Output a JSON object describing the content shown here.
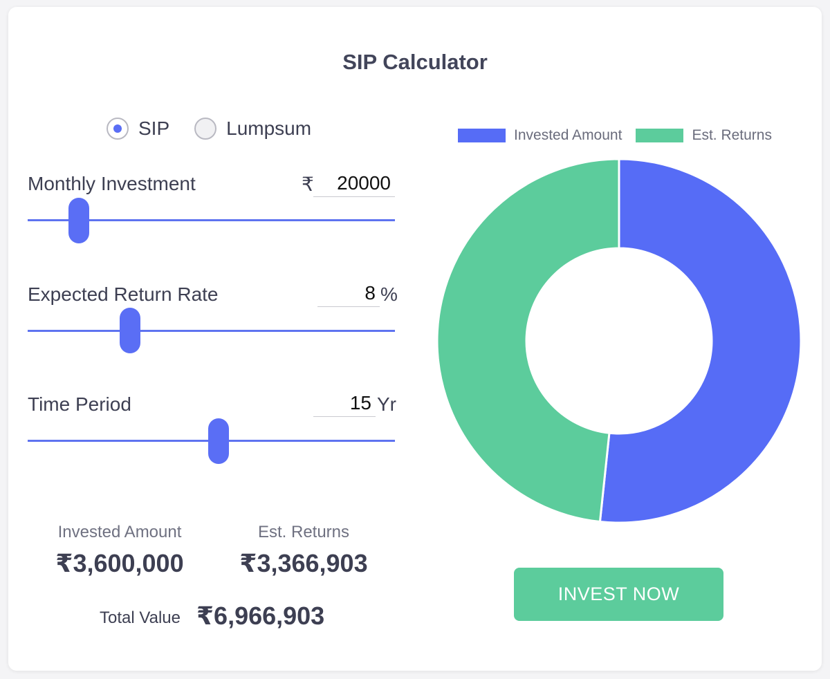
{
  "title": "SIP Calculator",
  "mode": {
    "options": [
      {
        "label": "SIP",
        "selected": true
      },
      {
        "label": "Lumpsum",
        "selected": false
      }
    ]
  },
  "inputs": {
    "monthly_investment": {
      "label": "Monthly Investment",
      "prefix": "₹",
      "value": "20000",
      "slider_fraction": 0.12
    },
    "return_rate": {
      "label": "Expected Return Rate",
      "value": "8",
      "suffix": "%",
      "slider_fraction": 0.26
    },
    "time_period": {
      "label": "Time Period",
      "value": "15",
      "suffix": "Yr",
      "slider_fraction": 0.5
    }
  },
  "summary": {
    "invested_label": "Invested Amount",
    "invested_value": "₹3,600,000",
    "returns_label": "Est. Returns",
    "returns_value": "₹3,366,903",
    "total_label": "Total Value",
    "total_value": "₹6,966,903"
  },
  "colors": {
    "accent": "#5a6ef5",
    "invested": "#566cf6",
    "returns": "#5ccc9c"
  },
  "chart_data": {
    "type": "pie",
    "donut": true,
    "legend_position": "top",
    "series": [
      {
        "name": "Invested Amount",
        "value": 3600000,
        "color": "#566cf6"
      },
      {
        "name": "Est. Returns",
        "value": 3366903,
        "color": "#5ccc9c"
      }
    ]
  },
  "cta": {
    "label": "INVEST NOW"
  }
}
